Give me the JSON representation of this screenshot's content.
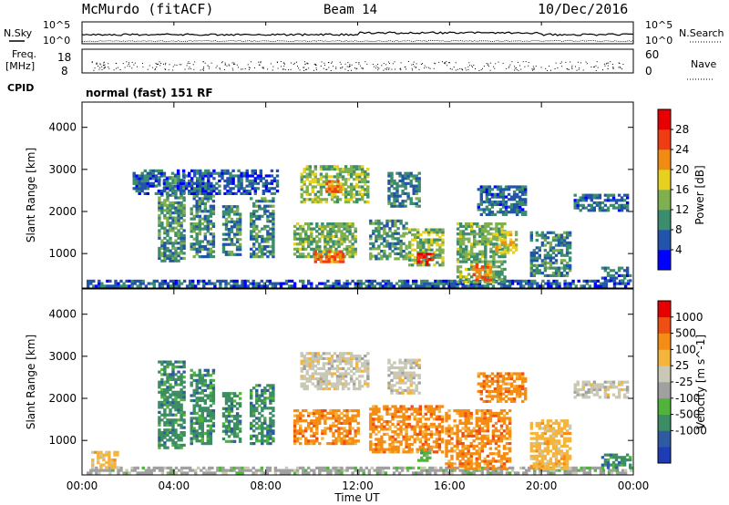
{
  "header": {
    "station": "McMurdo (fitACF)",
    "beam": "Beam 14",
    "date": "10/Dec/2016"
  },
  "panels": {
    "nsky_label": "N.Sky",
    "nsearch_label": "N.Search",
    "noise_tick_top": "10^5",
    "noise_tick_bottom": "10^0",
    "freq_label": "Freq.",
    "freq_unit": "[MHz]",
    "freq_ticks": [
      "18",
      "8"
    ],
    "nave_label": "Nave",
    "nave_ticks": [
      "60",
      "0"
    ],
    "cpid_label": "CPID",
    "cpid_text": "normal (fast) 151 RF"
  },
  "colors": {
    "power": [
      "#0000ff",
      "#2255aa",
      "#3c8c6e",
      "#7fb050",
      "#e8d020",
      "#f08c14",
      "#ee3c14",
      "#e60000"
    ],
    "velocity": [
      "#e60000",
      "#ee5014",
      "#f58c14",
      "#f5b43c",
      "#c8c8b4",
      "#a0a0a0",
      "#50b43c",
      "#3c8c64",
      "#2d5aa0",
      "#1e3cb4"
    ]
  },
  "chart_data": [
    {
      "type": "heatmap",
      "title": "",
      "ylabel": "Slant Range [km]",
      "ylim": [
        180,
        4600
      ],
      "xlim_hours": [
        0,
        24
      ],
      "colorbar_label": "Power [dB]",
      "colorbar_ticks": [
        "4",
        "8",
        "12",
        "16",
        "20",
        "24",
        "28"
      ],
      "colorbar_range": [
        0,
        30
      ],
      "ytick_labels": [
        "1000",
        "2000",
        "3000",
        "4000"
      ],
      "regions": [
        {
          "t0": 0.2,
          "t1": 23.9,
          "r0": 200,
          "r1": 330,
          "level": 6
        },
        {
          "t0": 3.3,
          "t1": 4.4,
          "r0": 800,
          "r1": 2900,
          "level": 10
        },
        {
          "t0": 4.7,
          "t1": 5.7,
          "r0": 900,
          "r1": 2700,
          "level": 9
        },
        {
          "t0": 6.1,
          "t1": 6.9,
          "r0": 950,
          "r1": 2100,
          "level": 9
        },
        {
          "t0": 2.2,
          "t1": 8.5,
          "r0": 2400,
          "r1": 3000,
          "level": 6
        },
        {
          "t0": 7.3,
          "t1": 8.3,
          "r0": 900,
          "r1": 2300,
          "level": 9
        },
        {
          "t0": 9.2,
          "t1": 11.9,
          "r0": 900,
          "r1": 1700,
          "level": 12
        },
        {
          "t0": 10.1,
          "t1": 11.3,
          "r0": 780,
          "r1": 1050,
          "level": 22
        },
        {
          "t0": 9.5,
          "t1": 12.4,
          "r0": 2200,
          "r1": 3100,
          "level": 13
        },
        {
          "t0": 10.6,
          "t1": 11.2,
          "r0": 2450,
          "r1": 2700,
          "level": 21
        },
        {
          "t0": 12.5,
          "t1": 14.1,
          "r0": 850,
          "r1": 1800,
          "level": 10
        },
        {
          "t0": 14.2,
          "t1": 15.7,
          "r0": 700,
          "r1": 1600,
          "level": 13
        },
        {
          "t0": 14.6,
          "t1": 15.2,
          "r0": 720,
          "r1": 1000,
          "level": 27
        },
        {
          "t0": 13.3,
          "t1": 14.7,
          "r0": 2100,
          "r1": 2900,
          "level": 8
        },
        {
          "t0": 16.3,
          "t1": 18.4,
          "r0": 300,
          "r1": 1700,
          "level": 12
        },
        {
          "t0": 17.0,
          "t1": 17.8,
          "r0": 350,
          "r1": 750,
          "level": 22
        },
        {
          "t0": 18.0,
          "t1": 18.9,
          "r0": 1000,
          "r1": 1500,
          "level": 17
        },
        {
          "t0": 17.2,
          "t1": 19.3,
          "r0": 1900,
          "r1": 2600,
          "level": 7
        },
        {
          "t0": 19.5,
          "t1": 21.2,
          "r0": 450,
          "r1": 1500,
          "level": 9
        },
        {
          "t0": 21.4,
          "t1": 23.7,
          "r0": 2000,
          "r1": 2400,
          "level": 7
        },
        {
          "t0": 22.6,
          "t1": 23.9,
          "r0": 330,
          "r1": 650,
          "level": 6
        }
      ]
    },
    {
      "type": "heatmap",
      "title": "",
      "ylabel": "Slant Range [km]",
      "xlabel": "Time UT",
      "ylim": [
        180,
        4600
      ],
      "xlim_hours": [
        0,
        24
      ],
      "colorbar_label": "Velocity [m s^-1]",
      "colorbar_ticks": [
        "1000",
        "500",
        "100",
        "25",
        "-25",
        "-100",
        "-500",
        "-1000"
      ],
      "ytick_labels": [
        "1000",
        "2000",
        "3000",
        "4000"
      ],
      "xtick_labels": [
        "00:00",
        "04:00",
        "08:00",
        "12:00",
        "16:00",
        "20:00",
        "00:00"
      ],
      "regions": [
        {
          "t0": 0.2,
          "t1": 23.9,
          "r0": 200,
          "r1": 330,
          "cat": 5
        },
        {
          "t0": 0.4,
          "t1": 1.6,
          "r0": 330,
          "r1": 700,
          "cat": 3
        },
        {
          "t0": 3.3,
          "t1": 4.4,
          "r0": 800,
          "r1": 2900,
          "cat": 7
        },
        {
          "t0": 4.7,
          "t1": 5.7,
          "r0": 900,
          "r1": 2700,
          "cat": 7
        },
        {
          "t0": 6.1,
          "t1": 6.9,
          "r0": 950,
          "r1": 2100,
          "cat": 7
        },
        {
          "t0": 7.3,
          "t1": 8.3,
          "r0": 900,
          "r1": 2300,
          "cat": 7
        },
        {
          "t0": 9.2,
          "t1": 12.0,
          "r0": 900,
          "r1": 1700,
          "cat": 2
        },
        {
          "t0": 9.5,
          "t1": 12.4,
          "r0": 2200,
          "r1": 3100,
          "cat": 4
        },
        {
          "t0": 12.5,
          "t1": 15.7,
          "r0": 700,
          "r1": 1800,
          "cat": 2
        },
        {
          "t0": 13.3,
          "t1": 14.7,
          "r0": 2100,
          "r1": 2900,
          "cat": 4
        },
        {
          "t0": 14.6,
          "t1": 15.1,
          "r0": 500,
          "r1": 800,
          "cat": 6
        },
        {
          "t0": 15.8,
          "t1": 18.6,
          "r0": 300,
          "r1": 1700,
          "cat": 2
        },
        {
          "t0": 17.2,
          "t1": 19.3,
          "r0": 1900,
          "r1": 2600,
          "cat": 2
        },
        {
          "t0": 19.5,
          "t1": 21.2,
          "r0": 300,
          "r1": 1500,
          "cat": 3
        },
        {
          "t0": 21.4,
          "t1": 23.7,
          "r0": 2000,
          "r1": 2400,
          "cat": 4
        },
        {
          "t0": 22.6,
          "t1": 23.9,
          "r0": 330,
          "r1": 650,
          "cat": 7
        }
      ]
    }
  ]
}
